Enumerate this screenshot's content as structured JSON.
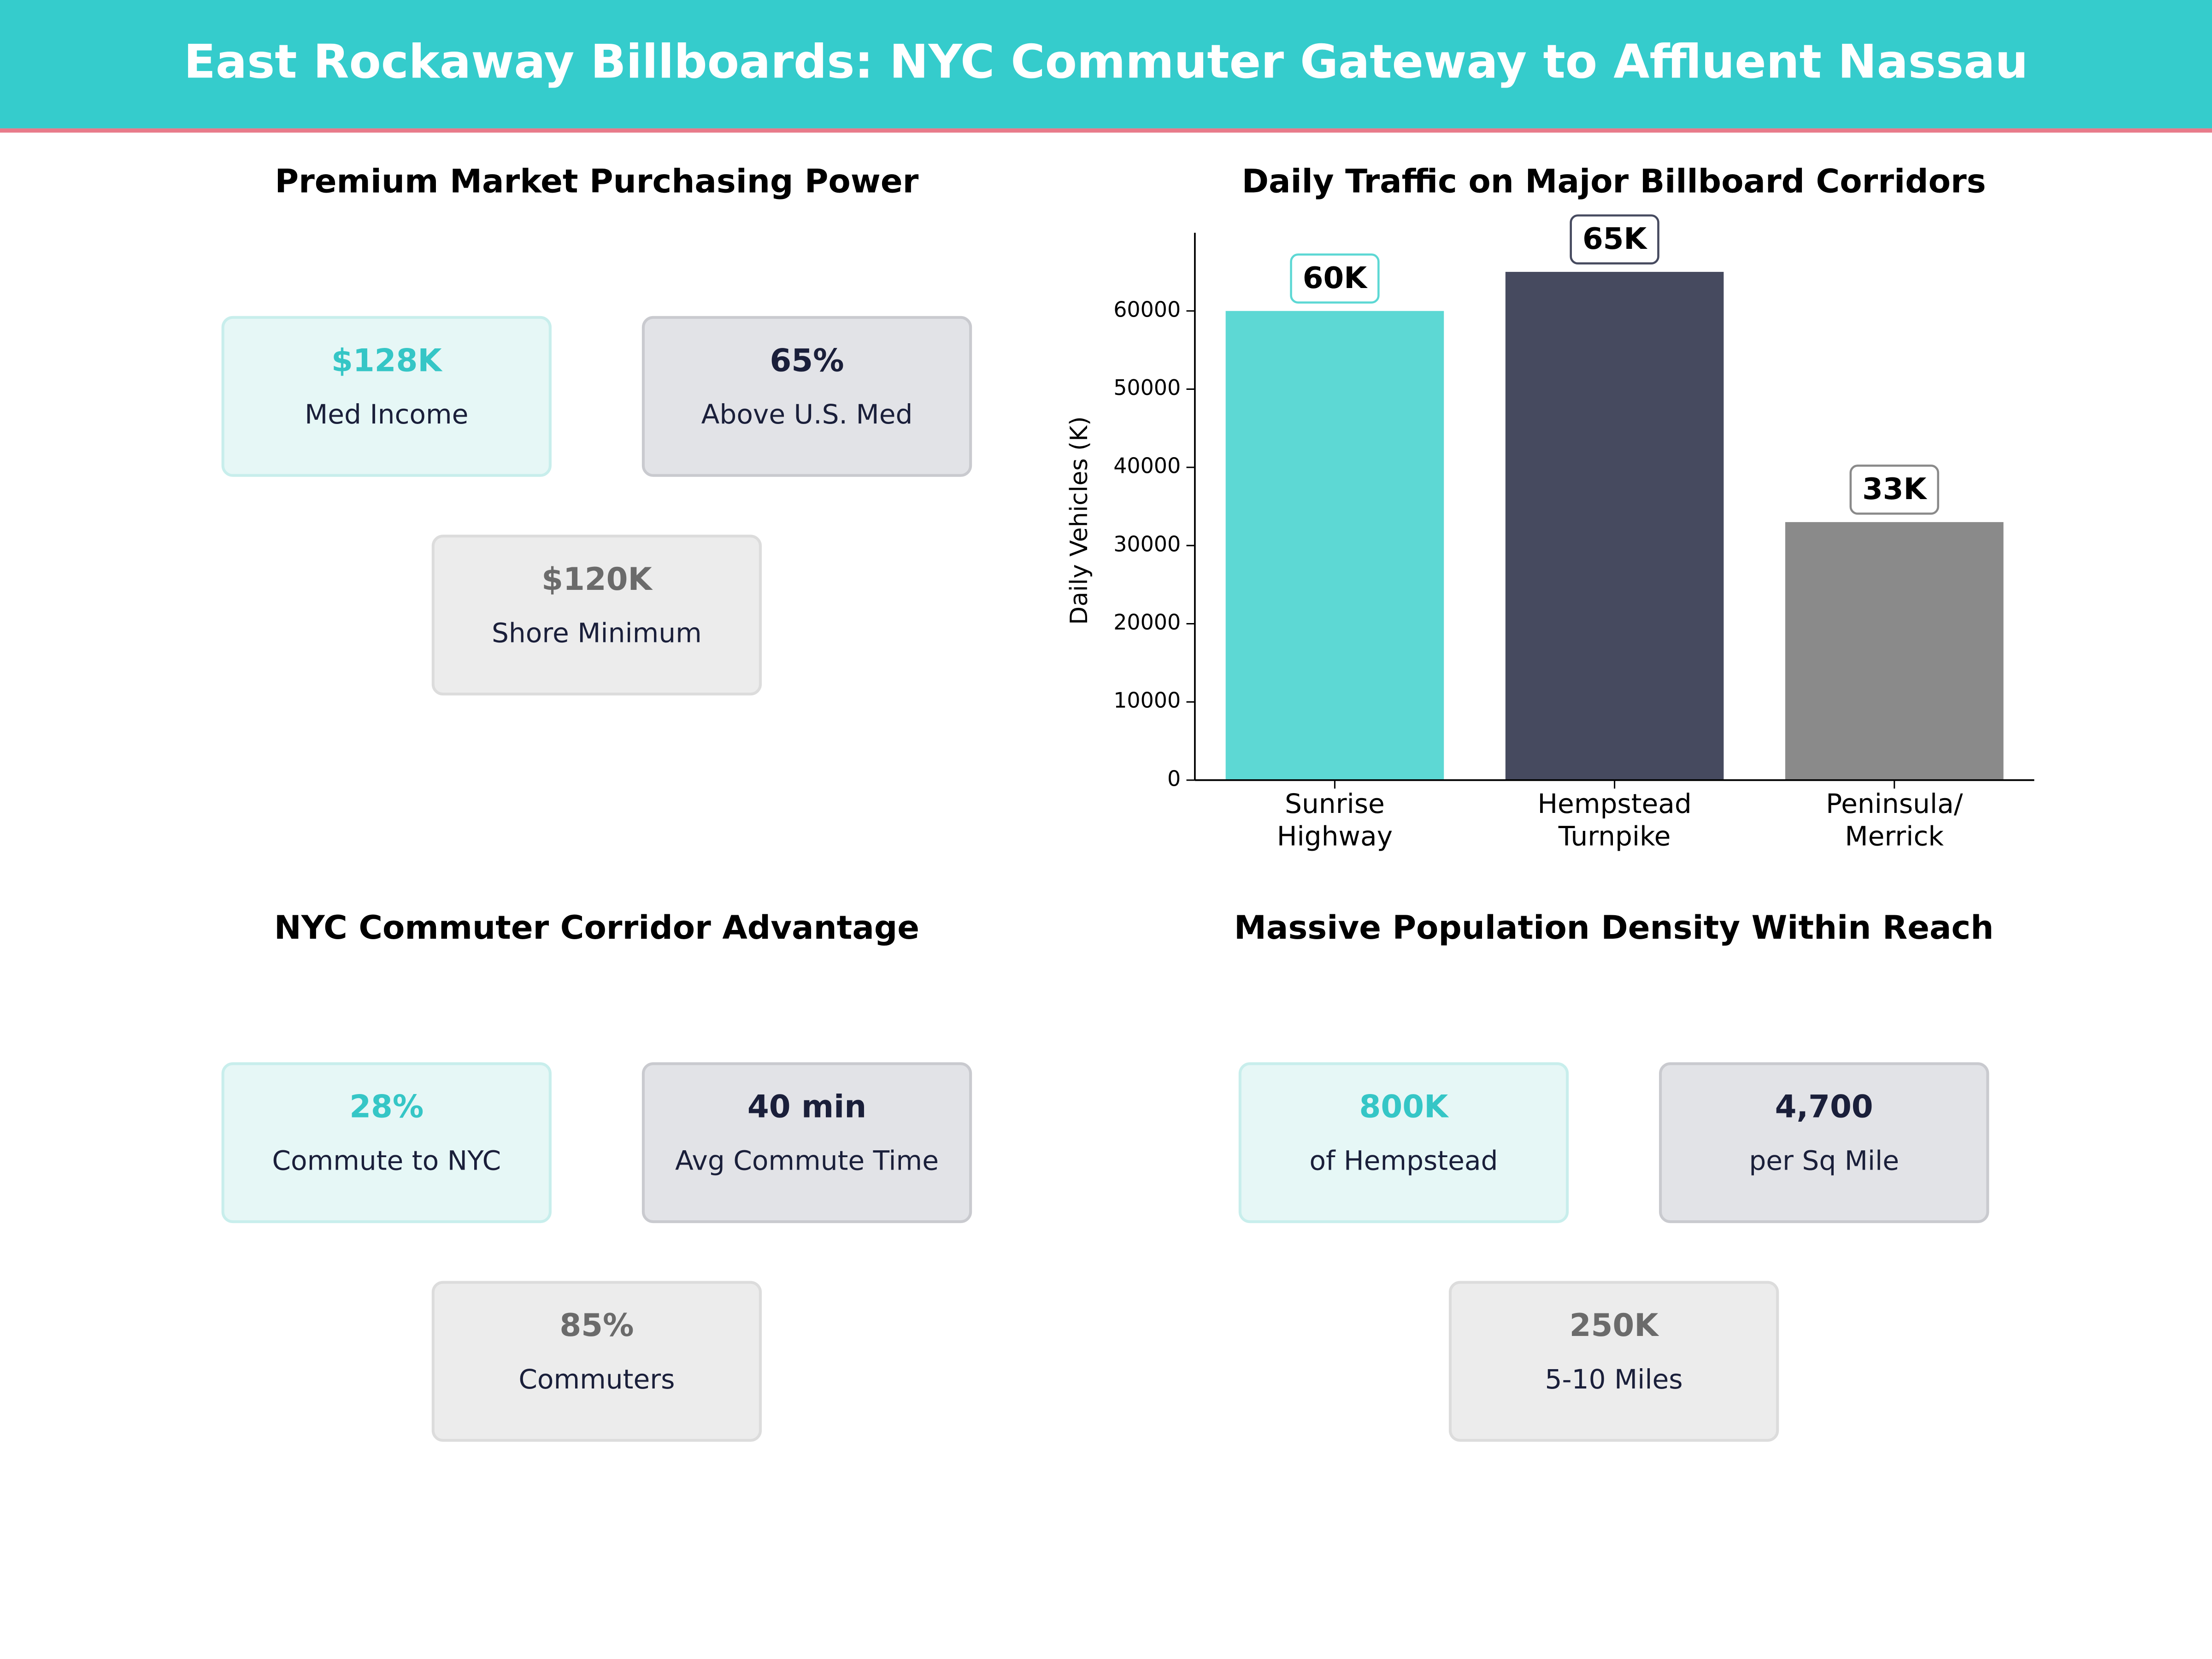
{
  "title": "East Rockaway Billboards: NYC Commuter Gateway to Affluent Nassau",
  "panels": [
    {
      "title": "Premium Market Purchasing Power",
      "cards": [
        {
          "value": "$128K",
          "label": "Med Income"
        },
        {
          "value": "65%",
          "label": "Above U.S. Med"
        },
        {
          "value": "$120K",
          "label": "Shore Minimum"
        }
      ]
    },
    {
      "title": "NYC Commuter Corridor Advantage",
      "cards": [
        {
          "value": "28%",
          "label": "Commute to NYC"
        },
        {
          "value": "40 min",
          "label": "Avg Commute Time"
        },
        {
          "value": "85%",
          "label": "Commuters"
        }
      ]
    },
    {
      "title": "Massive Population Density Within Reach",
      "cards": [
        {
          "value": "800K",
          "label": "of Hempstead"
        },
        {
          "value": "4,700",
          "label": "per Sq Mile"
        },
        {
          "value": "250K",
          "label": "5-10 Miles"
        }
      ]
    }
  ],
  "chart_data": {
    "type": "bar",
    "title": "Daily Traffic on Major Billboard Corridors",
    "ylabel": "Daily Vehicles (K)",
    "categories": [
      "Sunrise\nHighway",
      "Hempstead\nTurnpike",
      "Peninsula/\nMerrick"
    ],
    "values": [
      60000,
      65000,
      33000
    ],
    "value_labels": [
      "60K",
      "65K",
      "33K"
    ],
    "colors": [
      "#5dd8d4",
      "#464a5f",
      "#8a8a8a"
    ],
    "ylim": [
      0,
      70000
    ],
    "yticks": [
      0,
      10000,
      20000,
      30000,
      40000,
      50000,
      60000
    ],
    "grid": false
  }
}
